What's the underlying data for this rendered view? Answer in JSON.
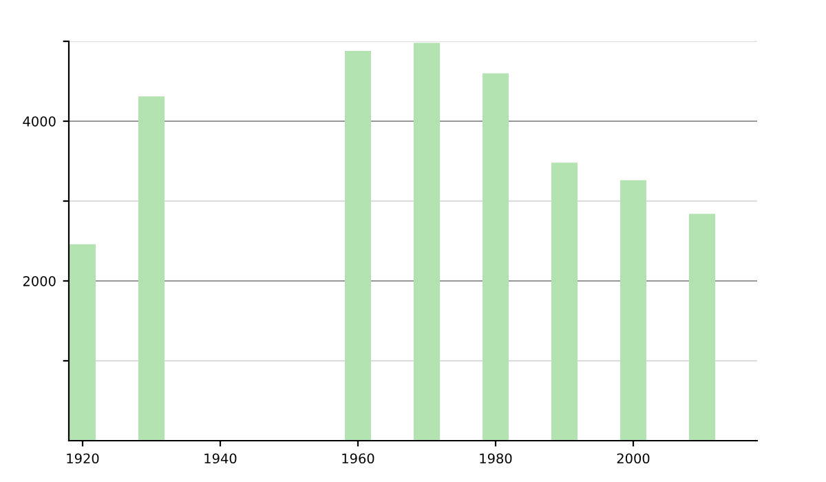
{
  "chart_data": {
    "type": "bar",
    "x": [
      1920,
      1930,
      1960,
      1970,
      1980,
      1990,
      2000,
      2010
    ],
    "values": [
      2460,
      4310,
      4880,
      4980,
      4600,
      3480,
      3260,
      2840
    ],
    "color": "#b3e3b0",
    "xlim": [
      1918,
      2018
    ],
    "xticks": [
      1920,
      1940,
      1960,
      1980,
      2000
    ],
    "ylim": [
      0,
      5000
    ],
    "yticks": [
      {
        "value": 1000,
        "label": null
      },
      2000,
      {
        "value": 3000,
        "label": null
      },
      4000,
      {
        "value": 5000,
        "label": null
      }
    ],
    "grid": "y",
    "legend": false
  }
}
